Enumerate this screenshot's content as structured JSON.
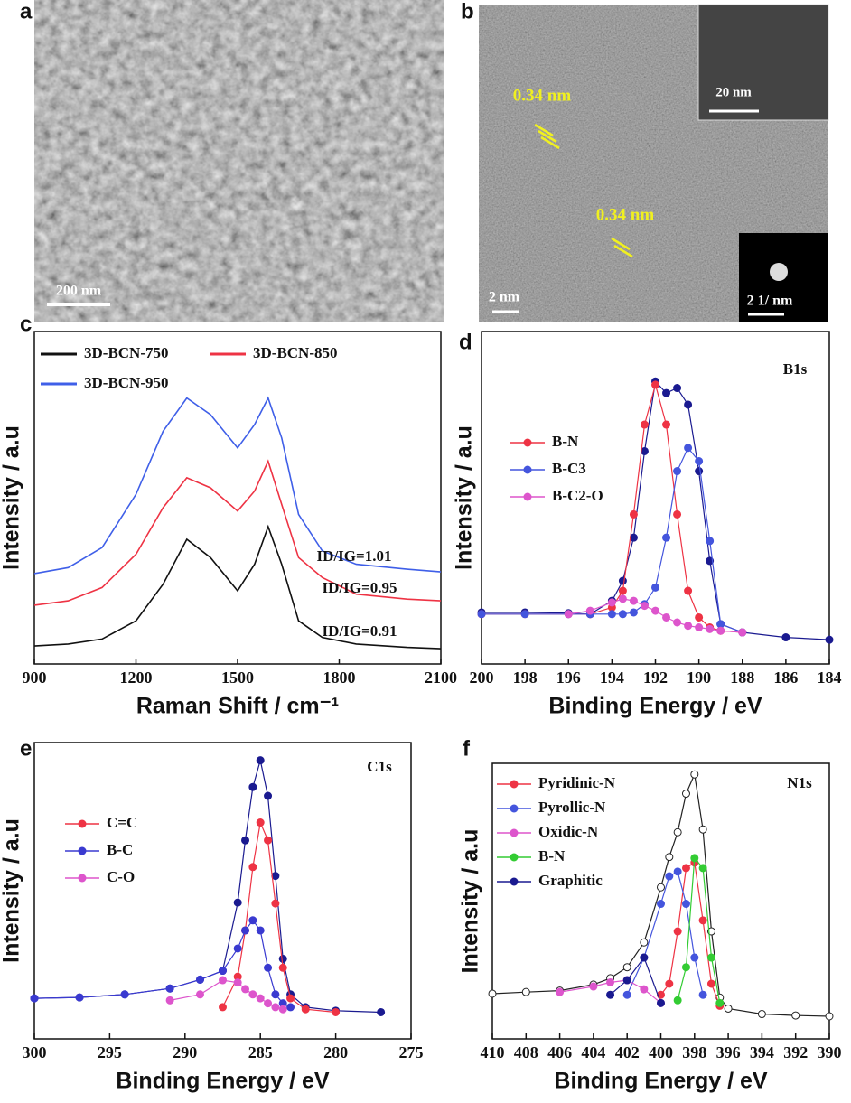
{
  "images": [
    {
      "label": "a",
      "scale_bar": "200 nm"
    },
    {
      "label": "b",
      "scale_bar": "2 nm",
      "annotations": [
        "0.34 nm",
        "0.34 nm"
      ],
      "insets": [
        {
          "scale_bar": "20 nm"
        },
        {
          "scale_bar": "2 1/ nm"
        }
      ]
    }
  ],
  "chart_data": [
    {
      "type": "line",
      "label": "c",
      "xlabel": "Raman Shift / cm⁻¹",
      "ylabel": "Intensity / a.u",
      "xlim": [
        900,
        2100
      ],
      "xticks": [
        900,
        1200,
        1500,
        1800,
        2100
      ],
      "ylim": [
        0,
        100
      ],
      "x": [
        900,
        1000,
        1100,
        1200,
        1280,
        1350,
        1420,
        1500,
        1550,
        1590,
        1630,
        1680,
        1750,
        1850,
        2000,
        2100
      ],
      "series": [
        {
          "name": "3D-BCN-750",
          "color": "#111111",
          "values": [
            5.4,
            6,
            7.5,
            13,
            24,
            37.5,
            32,
            22,
            30,
            41.3,
            30,
            13,
            8,
            6,
            5,
            4.6
          ]
        },
        {
          "name": "3D-BCN-850",
          "color": "#ee3344",
          "values": [
            17.7,
            19,
            23,
            33,
            47,
            56,
            53,
            46,
            52,
            61,
            48,
            32,
            26,
            21,
            19.5,
            19
          ]
        },
        {
          "name": "3D-BCN-950",
          "color": "#3f5fe8",
          "values": [
            27.2,
            29,
            35,
            51,
            70,
            80,
            75,
            65,
            72,
            80,
            68,
            45,
            34,
            30,
            28.5,
            27.7
          ]
        }
      ],
      "annotations": [
        "ID/IG=1.01",
        "ID/IG=0.95",
        "ID/IG=0.91"
      ]
    },
    {
      "type": "line",
      "label": "d",
      "xlabel": "Binding Energy / eV",
      "ylabel": "Intensity / a.u",
      "xlim": [
        200,
        184
      ],
      "xticks": [
        200,
        198,
        196,
        194,
        192,
        190,
        188,
        186,
        184
      ],
      "ylim": [
        0,
        100
      ],
      "x": [
        200,
        198,
        196,
        195,
        194,
        193.5,
        193,
        192.5,
        192,
        191.5,
        191,
        190.5,
        190,
        189.5,
        189,
        188,
        186,
        184
      ],
      "series": [
        {
          "color": "#1a1a90",
          "marker": "filled",
          "values": [
            15.5,
            15.5,
            15.3,
            15,
            19,
            25,
            38,
            64,
            85,
            81.5,
            83,
            78,
            58,
            31,
            12,
            9.5,
            8,
            7.3
          ]
        },
        {
          "name": "B-N",
          "color": "#ee3344",
          "marker": "filled",
          "values": [
            15,
            15,
            15,
            15,
            17,
            22,
            45,
            72,
            84,
            72,
            45,
            22,
            14,
            11,
            10,
            9.5,
            null,
            null
          ]
        },
        {
          "name": "B-C3",
          "color": "#4455dd",
          "marker": "filled",
          "values": [
            15,
            15,
            15,
            15,
            15,
            15,
            15.5,
            18,
            23,
            38,
            58,
            65,
            61,
            37,
            12,
            9.5,
            null,
            null
          ]
        },
        {
          "name": "B-C2-O",
          "color": "#dd55cc",
          "marker": "filled",
          "values": [
            null,
            null,
            15,
            16,
            18.5,
            19.6,
            19,
            17.5,
            16,
            14,
            12.5,
            11.5,
            11,
            10.5,
            10,
            9.5,
            null,
            null
          ]
        }
      ],
      "annotations": [
        "B1s"
      ]
    },
    {
      "type": "line",
      "label": "e",
      "xlabel": "Binding Energy / eV",
      "ylabel": "Intensity / a.u",
      "xlim": [
        300,
        275
      ],
      "xticks": [
        300,
        295,
        290,
        285,
        280,
        275
      ],
      "ylim": [
        0,
        100
      ],
      "x": [
        300,
        297,
        294,
        291,
        289,
        287.5,
        286.5,
        286,
        285.5,
        285,
        284.5,
        284,
        283.5,
        283,
        282,
        280,
        277
      ],
      "series": [
        {
          "color": "#1a1a90",
          "marker": "filled",
          "values": [
            13.7,
            14,
            15,
            17,
            20,
            23,
            46,
            67,
            85,
            94,
            82,
            55,
            27,
            15,
            10.7,
            9.5,
            9
          ]
        },
        {
          "name": "C=C",
          "color": "#ee3344",
          "marker": "filled",
          "values": [
            null,
            null,
            null,
            null,
            null,
            10.7,
            21,
            36.6,
            58,
            73,
            67,
            45.7,
            24,
            13.7,
            10,
            9,
            null
          ]
        },
        {
          "name": "B-C",
          "color": "#3a3ad0",
          "marker": "filled",
          "values": [
            13.7,
            14,
            15,
            17,
            20,
            23,
            30.5,
            36.6,
            40,
            36.6,
            24,
            15,
            12,
            10.7,
            null,
            null,
            null
          ]
        },
        {
          "name": "C-O",
          "color": "#dd55cc",
          "marker": "filled",
          "values": [
            null,
            null,
            null,
            13,
            15,
            19.8,
            19,
            16.8,
            15,
            13.7,
            12,
            10.7,
            10,
            null,
            null,
            null,
            null
          ]
        }
      ],
      "annotations": [
        "C1s"
      ]
    },
    {
      "type": "line",
      "label": "f",
      "xlabel": "Binding Energy / eV",
      "ylabel": "Intensity / a.u",
      "xlim": [
        410,
        390
      ],
      "xticks": [
        410,
        408,
        406,
        404,
        402,
        400,
        398,
        396,
        394,
        392,
        390
      ],
      "ylim": [
        0,
        100
      ],
      "x": [
        410,
        408,
        406,
        404,
        403,
        402,
        401,
        400,
        399.5,
        399,
        398.5,
        398,
        397.5,
        397,
        396.5,
        396,
        394,
        392,
        390
      ],
      "series": [
        {
          "color": "#222222",
          "marker": "open",
          "values": [
            16.4,
            17,
            17.5,
            19.7,
            22,
            26,
            35,
            55,
            66,
            75,
            89,
            96,
            76,
            39,
            15,
            11,
            9,
            8.5,
            8.2
          ]
        },
        {
          "name": "Pyridinic-N",
          "color": "#ee3344",
          "marker": "filled",
          "values": [
            null,
            null,
            null,
            null,
            null,
            null,
            null,
            16,
            20,
            39,
            62,
            64,
            43,
            20,
            12,
            null,
            null,
            null,
            null
          ]
        },
        {
          "name": "Pyrollic-N",
          "color": "#4455dd",
          "marker": "filled",
          "values": [
            null,
            null,
            null,
            null,
            null,
            16,
            29.5,
            49,
            59,
            60.7,
            49,
            29.5,
            16,
            null,
            null,
            null,
            null,
            null,
            null
          ]
        },
        {
          "name": "Oxidic-N",
          "color": "#dd55cc",
          "marker": "filled",
          "values": [
            null,
            null,
            17,
            19,
            20.5,
            21.3,
            18,
            13,
            null,
            null,
            null,
            null,
            null,
            null,
            null,
            null,
            null,
            null,
            null
          ]
        },
        {
          "name": "B-N",
          "color": "#33cc33",
          "marker": "filled",
          "values": [
            null,
            null,
            null,
            null,
            null,
            null,
            null,
            null,
            null,
            14,
            26,
            65.6,
            62,
            29.5,
            13,
            null,
            null,
            null,
            null
          ]
        },
        {
          "name": "Graphitic",
          "color": "#1a1a90",
          "marker": "filled",
          "values": [
            null,
            null,
            null,
            null,
            16,
            21.3,
            29.5,
            13,
            null,
            null,
            null,
            null,
            null,
            null,
            null,
            null,
            null,
            null,
            null
          ]
        }
      ],
      "annotations": [
        "N1s"
      ]
    }
  ]
}
